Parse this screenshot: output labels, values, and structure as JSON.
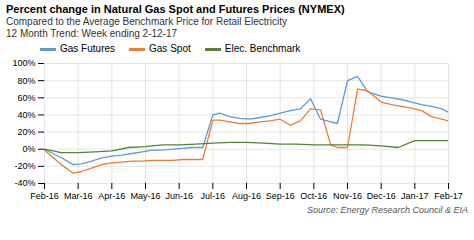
{
  "chart_data": {
    "type": "line",
    "title": "Percent change in Natural Gas Spot and Futures Prices (NYMEX)",
    "subtitle": [
      "Compared to the Average Benchmark Price for Retail Electricity",
      "12 Month Trend: Week ending 2-12-17"
    ],
    "source": "Source: Energy Research Council & EIA",
    "xlim": [
      0,
      12
    ],
    "xticks": [
      {
        "value": 0,
        "label": "Feb-16"
      },
      {
        "value": 1,
        "label": "Mar-16"
      },
      {
        "value": 2,
        "label": "Apr-16"
      },
      {
        "value": 3,
        "label": "May-16"
      },
      {
        "value": 4,
        "label": "Jun-16"
      },
      {
        "value": 5,
        "label": "Jul-16"
      },
      {
        "value": 6,
        "label": "Aug-16"
      },
      {
        "value": 7,
        "label": "Sep-16"
      },
      {
        "value": 8,
        "label": "Oct-16"
      },
      {
        "value": 9,
        "label": "Nov-16"
      },
      {
        "value": 10,
        "label": "Dec-16"
      },
      {
        "value": 11,
        "label": "Jan-17"
      },
      {
        "value": 12,
        "label": "Feb-17"
      }
    ],
    "ylim": [
      -40,
      100
    ],
    "yticks": [
      {
        "value": -40,
        "label": "-40%"
      },
      {
        "value": -20,
        "label": "-20%"
      },
      {
        "value": 0,
        "label": "0%"
      },
      {
        "value": 20,
        "label": "20%"
      },
      {
        "value": 40,
        "label": "40%"
      },
      {
        "value": 60,
        "label": "60%"
      },
      {
        "value": 80,
        "label": "80%"
      },
      {
        "value": 100,
        "label": "100%"
      }
    ],
    "grid": true,
    "legend": "top",
    "series": [
      {
        "name": "Gas Futures",
        "color": "#5B9BD5",
        "x": [
          0,
          0.5,
          0.85,
          1.1,
          1.4,
          1.7,
          2.0,
          2.3,
          2.6,
          2.9,
          3.2,
          3.5,
          3.8,
          4.1,
          4.4,
          4.7,
          5.0,
          5.2,
          5.5,
          5.8,
          6.1,
          6.4,
          6.7,
          7.0,
          7.3,
          7.6,
          7.9,
          8.2,
          8.5,
          8.7,
          9.0,
          9.3,
          9.6,
          10.0,
          10.3,
          10.6,
          10.9,
          11.2,
          11.5,
          11.8,
          12.0
        ],
        "values": [
          0,
          -10,
          -18,
          -17,
          -14,
          -10,
          -8,
          -7,
          -5,
          -3,
          -1,
          -1,
          0,
          1,
          2,
          2,
          40,
          42,
          38,
          36,
          35,
          37,
          39,
          42,
          45,
          47,
          59,
          35,
          32,
          30,
          80,
          85,
          67,
          62,
          60,
          58,
          55,
          52,
          50,
          47,
          43
        ]
      },
      {
        "name": "Gas Spot",
        "color": "#ED7D31",
        "x": [
          0,
          0.5,
          0.85,
          1.1,
          1.4,
          1.7,
          2.0,
          2.3,
          2.6,
          2.9,
          3.2,
          3.5,
          3.8,
          4.1,
          4.4,
          4.7,
          5.0,
          5.2,
          5.5,
          5.8,
          6.1,
          6.4,
          6.7,
          7.0,
          7.3,
          7.6,
          7.9,
          8.2,
          8.5,
          8.7,
          9.0,
          9.3,
          9.6,
          10.0,
          10.3,
          10.6,
          10.9,
          11.2,
          11.5,
          11.8,
          12.0
        ],
        "values": [
          -1,
          -18,
          -28,
          -26,
          -22,
          -18,
          -16,
          -15,
          -14,
          -14,
          -13,
          -13,
          -13,
          -12,
          -12,
          -12,
          34,
          34,
          32,
          30,
          30,
          32,
          33,
          35,
          28,
          33,
          47,
          46,
          5,
          2,
          2,
          70,
          68,
          55,
          52,
          50,
          48,
          45,
          38,
          35,
          33
        ]
      },
      {
        "name": "Elec. Benchmark",
        "color": "#548235",
        "x": [
          0,
          0.5,
          1.0,
          1.5,
          2.0,
          2.5,
          3.0,
          3.5,
          4.0,
          4.5,
          5.0,
          5.5,
          6.0,
          6.5,
          7.0,
          7.5,
          8.0,
          8.5,
          9.0,
          9.5,
          10.0,
          10.5,
          11.0,
          11.5,
          12.0
        ],
        "values": [
          0,
          -4,
          -4,
          -3,
          -2,
          2,
          3,
          5,
          5,
          6,
          7,
          8,
          8,
          7,
          6,
          6,
          5,
          5,
          5,
          5,
          4,
          2,
          10,
          10,
          10
        ]
      }
    ]
  }
}
